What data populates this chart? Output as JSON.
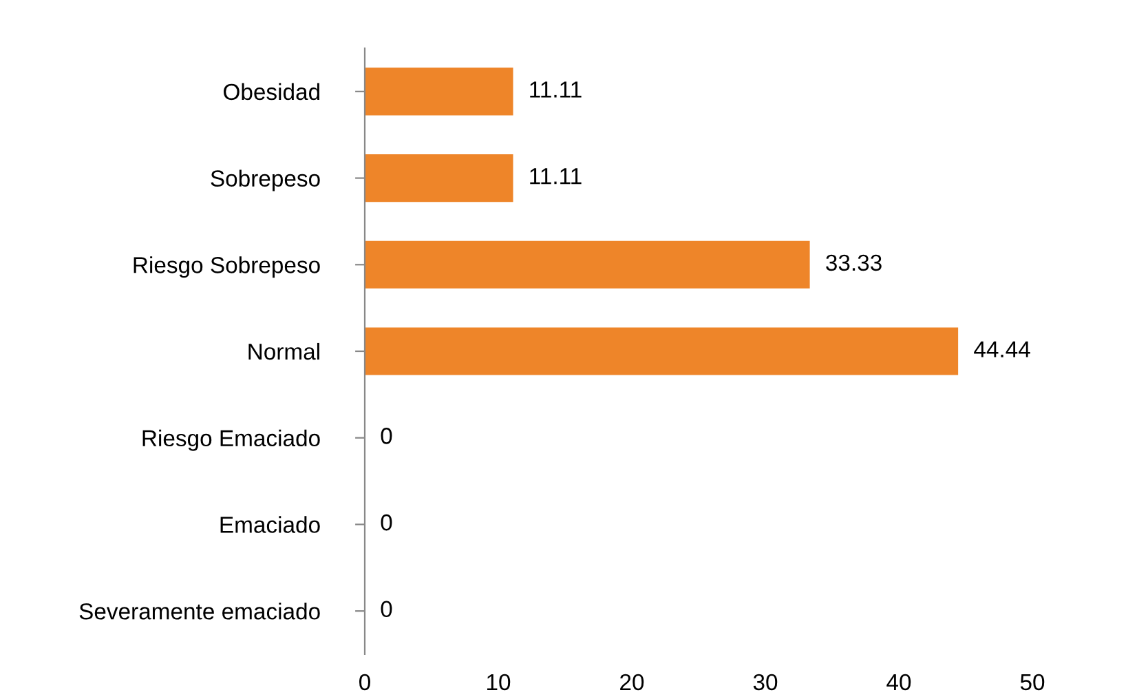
{
  "chart_data": {
    "type": "bar",
    "orientation": "horizontal",
    "categories": [
      "Obesidad",
      "Sobrepeso",
      "Riesgo Sobrepeso",
      "Normal",
      "Riesgo Emaciado",
      "Emaciado",
      "Severamente emaciado"
    ],
    "values": [
      11.11,
      11.11,
      33.33,
      44.44,
      0,
      0,
      0
    ],
    "color": "#ee8529",
    "xlim": [
      0,
      50
    ],
    "xticks": [
      0,
      10,
      20,
      30,
      40,
      50
    ],
    "data_labels": true,
    "grid": false,
    "legend": false
  }
}
